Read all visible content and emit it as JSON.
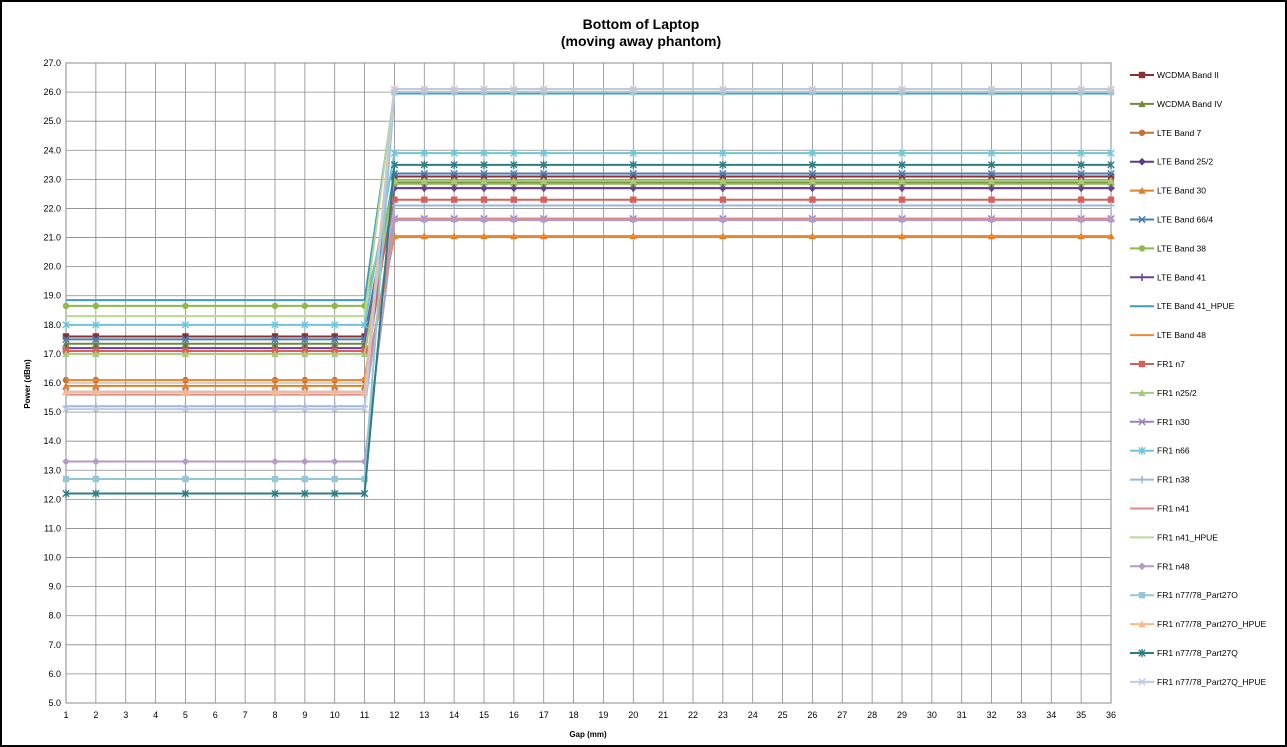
{
  "chart_data": {
    "type": "line",
    "title": "Bottom of Laptop",
    "subtitle": "(moving away phantom)",
    "xlabel": "Gap (mm)",
    "ylabel": "Power (dBm)",
    "xlim": [
      1,
      36
    ],
    "ylim": [
      5.0,
      27.0
    ],
    "x_ticks": [
      "1",
      "2",
      "3",
      "4",
      "5",
      "6",
      "7",
      "8",
      "9",
      "10",
      "11",
      "12",
      "13",
      "14",
      "15",
      "16",
      "17",
      "18",
      "19",
      "20",
      "21",
      "22",
      "23",
      "24",
      "25",
      "26",
      "27",
      "28",
      "29",
      "30",
      "31",
      "32",
      "33",
      "34",
      "35",
      "36"
    ],
    "y_ticks": [
      "5.0",
      "6.0",
      "7.0",
      "8.0",
      "9.0",
      "10.0",
      "11.0",
      "12.0",
      "13.0",
      "14.0",
      "15.0",
      "16.0",
      "17.0",
      "18.0",
      "19.0",
      "20.0",
      "21.0",
      "22.0",
      "23.0",
      "24.0",
      "25.0",
      "26.0",
      "27.0"
    ],
    "grid": true,
    "legend_position": "right",
    "x": [
      1,
      2,
      5,
      8,
      9,
      10,
      11,
      12,
      13,
      14,
      15,
      16,
      17,
      20,
      23,
      26,
      29,
      32,
      35,
      36
    ],
    "series": [
      {
        "name": "WCDMA Band II",
        "color": "#8B2F2F",
        "marker": "square",
        "low": 17.6,
        "high": 23.1
      },
      {
        "name": "WCDMA Band IV",
        "color": "#6E8B3D",
        "marker": "triangle",
        "low": 17.35,
        "high": 22.9
      },
      {
        "name": "LTE Band 7",
        "color": "#C0703A",
        "marker": "circle",
        "low": 16.1,
        "high": 22.95
      },
      {
        "name": "LTE Band 25/2",
        "color": "#5B3C8A",
        "marker": "diamond",
        "low": 17.1,
        "high": 22.7
      },
      {
        "name": "LTE Band 30",
        "color": "#D9822B",
        "marker": "triangle",
        "low": 15.9,
        "high": 21.05
      },
      {
        "name": "LTE Band 66/4",
        "color": "#4A7DB5",
        "marker": "x",
        "low": 17.5,
        "high": 23.2
      },
      {
        "name": "LTE Band 38",
        "color": "#8DB84A",
        "marker": "circle",
        "low": 18.65,
        "high": 22.85
      },
      {
        "name": "LTE Band 41",
        "color": "#6A3F96",
        "marker": "plus",
        "low": 17.2,
        "high": 22.7
      },
      {
        "name": "LTE Band 41_HPUE",
        "color": "#3E9BC4",
        "marker": "none",
        "low": 18.85,
        "high": 25.95
      },
      {
        "name": "LTE Band 48",
        "color": "#F08A2A",
        "marker": "none",
        "low": 16.1,
        "high": 21.05
      },
      {
        "name": "FR1 n7",
        "color": "#D9605A",
        "marker": "square",
        "low": 17.1,
        "high": 22.3
      },
      {
        "name": "FR1 n25/2",
        "color": "#A8C97A",
        "marker": "triangle",
        "low": 17.0,
        "high": 22.95
      },
      {
        "name": "FR1 n30",
        "color": "#9B7FC0",
        "marker": "x",
        "low": 15.7,
        "high": 21.65
      },
      {
        "name": "FR1 n66",
        "color": "#6FC5D8",
        "marker": "asterisk",
        "low": 18.0,
        "high": 23.9
      },
      {
        "name": "FR1 n38",
        "color": "#9BB6D9",
        "marker": "plus",
        "low": 15.2,
        "high": 22.1
      },
      {
        "name": "FR1 n41",
        "color": "#E08A8A",
        "marker": "none",
        "low": 15.6,
        "high": 21.65
      },
      {
        "name": "FR1 n41_HPUE",
        "color": "#B9D898",
        "marker": "none",
        "low": 18.3,
        "high": 26.1
      },
      {
        "name": "FR1 n48",
        "color": "#B29BC9",
        "marker": "diamond",
        "low": 13.3,
        "high": 21.6
      },
      {
        "name": "FR1 n77/78_Part27O",
        "color": "#93C6D6",
        "marker": "square",
        "low": 12.7,
        "high": 26.0
      },
      {
        "name": "FR1 n77/78_Part27O_HPUE",
        "color": "#F5B98A",
        "marker": "triangle",
        "low": 15.7,
        "high": 26.1
      },
      {
        "name": "FR1 n77/78_Part27Q",
        "color": "#2E7D82",
        "marker": "asterisk",
        "low": 12.2,
        "high": 23.5
      },
      {
        "name": "FR1 n77/78_Part27Q_HPUE",
        "color": "#BFC8E6",
        "marker": "x",
        "low": 15.1,
        "high": 26.1
      }
    ]
  }
}
